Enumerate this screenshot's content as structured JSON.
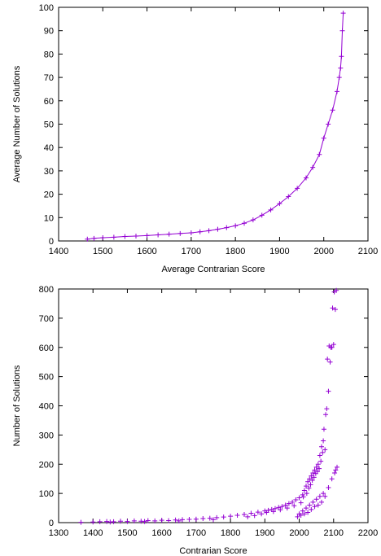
{
  "chart_data": [
    {
      "type": "line",
      "title": "",
      "xlabel": "Average Contrarian Score",
      "ylabel": "Average Number of Solutions",
      "xlim": [
        1400,
        2100
      ],
      "ylim": [
        0,
        100
      ],
      "xticks": [
        "1400",
        "1500",
        "1600",
        "1700",
        "1800",
        "1900",
        "2000",
        "2100"
      ],
      "yticks": [
        "0",
        "10",
        "20",
        "30",
        "40",
        "50",
        "60",
        "70",
        "80",
        "90",
        "100"
      ],
      "marker": "plus",
      "color": "#9400d3",
      "grid": false,
      "series": [
        {
          "x": [
            1465,
            1480,
            1500,
            1525,
            1550,
            1575,
            1600,
            1625,
            1650,
            1675,
            1700,
            1720,
            1740,
            1760,
            1780,
            1800,
            1820,
            1840,
            1860,
            1880,
            1900,
            1920,
            1940,
            1960,
            1975,
            1990,
            2000,
            2010,
            2020,
            2030,
            2035,
            2038,
            2040,
            2042,
            2044
          ],
          "y": [
            0.8,
            1.1,
            1.4,
            1.6,
            1.9,
            2.1,
            2.3,
            2.6,
            2.9,
            3.2,
            3.5,
            3.9,
            4.4,
            5.0,
            5.7,
            6.5,
            7.6,
            9.0,
            11.0,
            13.3,
            16.0,
            19.0,
            22.5,
            27.0,
            31.5,
            37.0,
            44.0,
            50.0,
            56.0,
            64.0,
            70.0,
            74.0,
            79.0,
            90.0,
            97.5
          ]
        }
      ]
    },
    {
      "type": "scatter",
      "title": "",
      "xlabel": "Contrarian Score",
      "ylabel": "Number of Solutions",
      "xlim": [
        1300,
        2200
      ],
      "ylim": [
        0,
        800
      ],
      "xticks": [
        "1300",
        "1400",
        "1500",
        "1600",
        "1700",
        "1800",
        "1900",
        "2000",
        "2100",
        "2200"
      ],
      "yticks": [
        "0",
        "100",
        "200",
        "300",
        "400",
        "500",
        "600",
        "700",
        "800"
      ],
      "marker": "plus",
      "color": "#9400d3",
      "grid": false,
      "series": [
        {
          "x": [
            1365,
            1400,
            1420,
            1440,
            1460,
            1480,
            1500,
            1520,
            1540,
            1560,
            1580,
            1600,
            1620,
            1640,
            1660,
            1680,
            1700,
            1720,
            1740,
            1760,
            1780,
            1800,
            1820,
            1840,
            1860,
            1880,
            1900,
            1910,
            1920,
            1930,
            1940,
            1950,
            1960,
            1970,
            1980,
            1990,
            2000,
            2010,
            2015,
            2020,
            2025,
            2030,
            2035,
            2040,
            2045,
            2050,
            2055,
            2060,
            2065,
            2070,
            2075,
            2080,
            2085,
            2090,
            2095,
            2100,
            2105,
            1450,
            1550,
            1650,
            1750,
            1850,
            1870,
            1890,
            1905,
            1925,
            1945,
            1965,
            1985,
            2005,
            2012,
            2022,
            2028,
            2033,
            2038,
            2043,
            2048,
            2053,
            2058,
            2063,
            2068,
            2072,
            2077,
            2082,
            2087,
            2092,
            2097,
            2102,
            2108,
            2000,
            2010,
            2020,
            2030,
            2040,
            2050,
            2060,
            2070,
            1995,
            2005,
            2015,
            2025,
            2035,
            2045,
            2055,
            2065,
            2075,
            2085,
            2095,
            2103,
            2106,
            2110
          ],
          "y": [
            1,
            2,
            3,
            4,
            3,
            5,
            4,
            6,
            5,
            7,
            6,
            8,
            7,
            9,
            10,
            11,
            12,
            14,
            15,
            17,
            19,
            22,
            25,
            28,
            32,
            36,
            40,
            42,
            45,
            48,
            52,
            55,
            60,
            65,
            70,
            78,
            85,
            95,
            110,
            125,
            140,
            150,
            160,
            170,
            180,
            190,
            200,
            230,
            260,
            280,
            250,
            390,
            450,
            550,
            600,
            610,
            730,
            2,
            4,
            6,
            10,
            20,
            24,
            30,
            35,
            38,
            44,
            50,
            58,
            68,
            88,
            100,
            118,
            130,
            145,
            155,
            168,
            175,
            185,
            210,
            240,
            320,
            370,
            560,
            605,
            600,
            735,
            790,
            795,
            30,
            40,
            50,
            60,
            70,
            80,
            90,
            100,
            20,
            25,
            30,
            35,
            45,
            55,
            60,
            70,
            90,
            120,
            150,
            170,
            180,
            190
          ]
        }
      ]
    }
  ]
}
